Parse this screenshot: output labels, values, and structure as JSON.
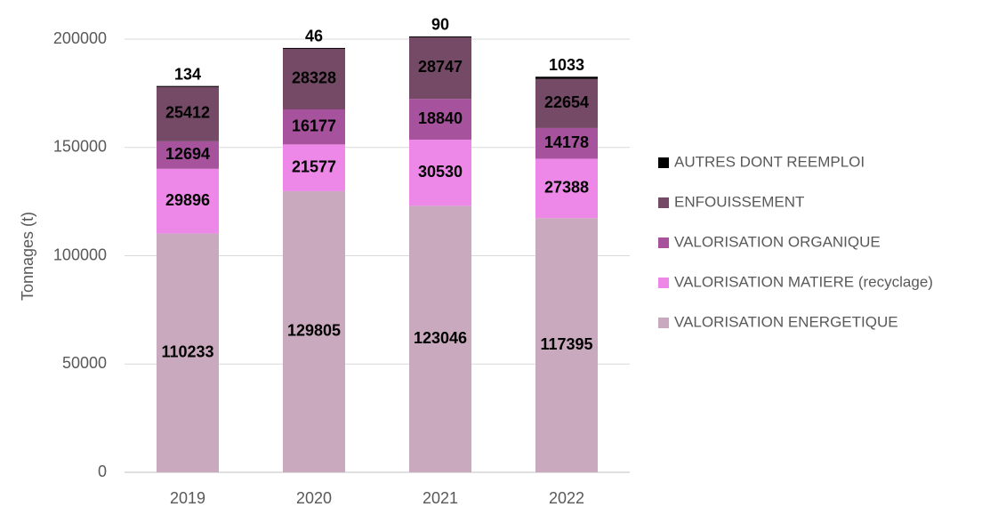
{
  "chart_data": {
    "type": "stacked_bar",
    "y_label": "Tonnages (t)",
    "categories": [
      "2019",
      "2020",
      "2021",
      "2022"
    ],
    "series": [
      {
        "name": "VALORISATION ENERGETIQUE",
        "color": "#c9a9bd",
        "values": [
          110233,
          129805,
          123046,
          117395
        ]
      },
      {
        "name": "VALORISATION MATIERE (recyclage)",
        "color": "#ee88e8",
        "values": [
          29896,
          21577,
          30530,
          27388
        ]
      },
      {
        "name": "VALORISATION ORGANIQUE",
        "color": "#a6529d",
        "values": [
          12694,
          16177,
          18840,
          14178
        ]
      },
      {
        "name": "ENFOUISSEMENT",
        "color": "#744a66",
        "values": [
          25412,
          28328,
          28747,
          22654
        ]
      },
      {
        "name": "AUTRES DONT REEMPLOI",
        "color": "#000000",
        "values": [
          134,
          46,
          90,
          1033
        ]
      }
    ],
    "ylim": [
      0,
      200000
    ],
    "yticks": [
      0,
      50000,
      100000,
      150000,
      200000
    ],
    "grid": true
  }
}
